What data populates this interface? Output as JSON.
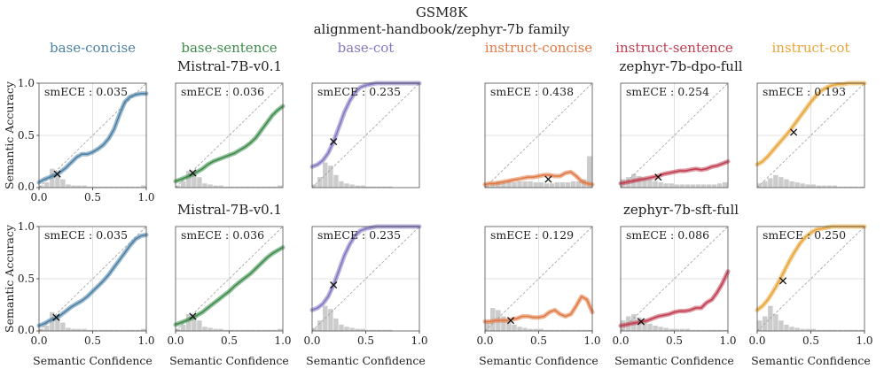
{
  "figure": {
    "title": "GSM8K",
    "subtitle": "alignment-handbook/zephyr-7b family",
    "column_titles": [
      {
        "label": "base-concise",
        "color": "#4c81a6"
      },
      {
        "label": "base-sentence",
        "color": "#3d8c4c"
      },
      {
        "label": "base-cot",
        "color": "#8477c0"
      },
      {
        "label": "instruct-concise",
        "color": "#e07a45"
      },
      {
        "label": "instruct-sentence",
        "color": "#c13e51"
      },
      {
        "label": "instruct-cot",
        "color": "#e8a53a"
      }
    ],
    "row_labels": [
      {
        "left": "Mistral-7B-v0.1",
        "right": "zephyr-7b-dpo-full"
      },
      {
        "left": "Mistral-7B-v0.1",
        "right": "zephyr-7b-sft-full"
      }
    ],
    "xlabel": "Semantic Confidence",
    "ylabel": "Semantic Accuracy"
  },
  "chart_data": [
    {
      "type": "line",
      "row": 0,
      "col": 0,
      "label": "base-concise",
      "annotation": "smECE : 0.035",
      "xlim": [
        0,
        1
      ],
      "ylim": [
        0,
        1
      ],
      "xticks": [
        "0.0",
        "0.5",
        "1.0"
      ],
      "yticks": [
        "0.0",
        "0.5",
        "1.0"
      ],
      "color": "#4c81a6",
      "curve_x": [
        0,
        0.05,
        0.1,
        0.15,
        0.2,
        0.25,
        0.3,
        0.35,
        0.4,
        0.45,
        0.5,
        0.55,
        0.6,
        0.65,
        0.7,
        0.75,
        0.8,
        0.85,
        0.9,
        0.95,
        1.0
      ],
      "curve_y": [
        0.05,
        0.08,
        0.1,
        0.12,
        0.15,
        0.19,
        0.24,
        0.29,
        0.32,
        0.32,
        0.34,
        0.37,
        0.41,
        0.47,
        0.56,
        0.7,
        0.82,
        0.87,
        0.89,
        0.9,
        0.9
      ],
      "marker": [
        0.17,
        0.13
      ],
      "hist": [
        0.02,
        0.05,
        0.18,
        0.14,
        0.08,
        0.03,
        0.02,
        0.02,
        0.02,
        0.01,
        0.01,
        0.01,
        0.01,
        0.01,
        0.01,
        0.01,
        0.01,
        0.01,
        0.01,
        0.02
      ]
    },
    {
      "type": "line",
      "row": 0,
      "col": 1,
      "label": "base-sentence",
      "annotation": "smECE : 0.036",
      "xlim": [
        0,
        1
      ],
      "ylim": [
        0,
        1
      ],
      "xticks": [],
      "yticks": [],
      "color": "#3d8c4c",
      "curve_x": [
        0,
        0.05,
        0.1,
        0.15,
        0.2,
        0.25,
        0.3,
        0.35,
        0.4,
        0.45,
        0.5,
        0.55,
        0.6,
        0.65,
        0.7,
        0.75,
        0.8,
        0.85,
        0.9,
        0.95,
        1.0
      ],
      "curve_y": [
        0.06,
        0.08,
        0.1,
        0.12,
        0.15,
        0.18,
        0.22,
        0.25,
        0.27,
        0.29,
        0.31,
        0.33,
        0.36,
        0.39,
        0.43,
        0.48,
        0.55,
        0.62,
        0.69,
        0.74,
        0.78
      ],
      "marker": [
        0.16,
        0.14
      ],
      "hist": [
        0.02,
        0.06,
        0.16,
        0.13,
        0.1,
        0.04,
        0.03,
        0.02,
        0.02,
        0.01,
        0.01,
        0.01,
        0.01,
        0.01,
        0.01,
        0.01,
        0.01,
        0.01,
        0.01,
        0.02
      ]
    },
    {
      "type": "line",
      "row": 0,
      "col": 2,
      "label": "base-cot",
      "annotation": "smECE : 0.235",
      "xlim": [
        0,
        1
      ],
      "ylim": [
        0,
        1
      ],
      "xticks": [],
      "yticks": [],
      "color": "#8477c0",
      "curve_x": [
        0,
        0.05,
        0.1,
        0.15,
        0.2,
        0.25,
        0.3,
        0.35,
        0.4,
        0.45,
        0.5,
        0.55,
        0.6,
        0.65,
        0.7,
        0.75,
        0.8,
        0.85,
        0.9,
        0.95,
        1.0
      ],
      "curve_y": [
        0.2,
        0.22,
        0.26,
        0.33,
        0.44,
        0.58,
        0.72,
        0.83,
        0.91,
        0.96,
        0.98,
        0.99,
        1.0,
        1.0,
        1.0,
        1.0,
        1.0,
        1.0,
        1.0,
        1.0,
        1.0
      ],
      "marker": [
        0.2,
        0.44
      ],
      "hist": [
        0.03,
        0.1,
        0.24,
        0.21,
        0.12,
        0.06,
        0.04,
        0.03,
        0.02,
        0.02,
        0.01,
        0.01,
        0.01,
        0.01,
        0.01,
        0.0,
        0.0,
        0.0,
        0.0,
        0.0
      ]
    },
    {
      "type": "line",
      "row": 0,
      "col": 3,
      "label": "instruct-concise",
      "annotation": "smECE : 0.438",
      "xlim": [
        0,
        1
      ],
      "ylim": [
        0,
        1
      ],
      "xticks": [],
      "yticks": [],
      "color": "#e07a45",
      "curve_x": [
        0,
        0.05,
        0.1,
        0.15,
        0.2,
        0.25,
        0.3,
        0.35,
        0.4,
        0.45,
        0.5,
        0.55,
        0.6,
        0.65,
        0.7,
        0.75,
        0.8,
        0.85,
        0.9,
        0.95,
        1.0
      ],
      "curve_y": [
        0.03,
        0.04,
        0.04,
        0.05,
        0.06,
        0.07,
        0.08,
        0.09,
        0.1,
        0.1,
        0.11,
        0.12,
        0.12,
        0.11,
        0.11,
        0.14,
        0.15,
        0.11,
        0.06,
        0.04,
        0.03
      ],
      "marker": [
        0.59,
        0.08
      ],
      "hist": [
        0.02,
        0.04,
        0.06,
        0.05,
        0.06,
        0.05,
        0.06,
        0.06,
        0.06,
        0.05,
        0.05,
        0.04,
        0.04,
        0.05,
        0.05,
        0.05,
        0.06,
        0.06,
        0.08,
        0.3
      ]
    },
    {
      "type": "line",
      "row": 0,
      "col": 4,
      "label": "instruct-sentence",
      "annotation": "smECE : 0.254",
      "xlim": [
        0,
        1
      ],
      "ylim": [
        0,
        1
      ],
      "xticks": [],
      "yticks": [],
      "color": "#c13e51",
      "curve_x": [
        0,
        0.05,
        0.1,
        0.15,
        0.2,
        0.25,
        0.3,
        0.35,
        0.4,
        0.45,
        0.5,
        0.55,
        0.6,
        0.65,
        0.7,
        0.75,
        0.8,
        0.85,
        0.9,
        0.95,
        1.0
      ],
      "curve_y": [
        0.04,
        0.05,
        0.06,
        0.07,
        0.08,
        0.09,
        0.1,
        0.11,
        0.13,
        0.14,
        0.15,
        0.16,
        0.16,
        0.17,
        0.18,
        0.17,
        0.18,
        0.2,
        0.21,
        0.23,
        0.25
      ],
      "marker": [
        0.35,
        0.1
      ],
      "hist": [
        0.08,
        0.1,
        0.13,
        0.11,
        0.09,
        0.08,
        0.06,
        0.05,
        0.04,
        0.04,
        0.03,
        0.03,
        0.03,
        0.03,
        0.03,
        0.03,
        0.03,
        0.03,
        0.04,
        0.05
      ]
    },
    {
      "type": "line",
      "row": 0,
      "col": 5,
      "label": "instruct-cot",
      "annotation": "smECE : 0.193",
      "xlim": [
        0,
        1
      ],
      "ylim": [
        0,
        1
      ],
      "xticks": [],
      "yticks": [],
      "color": "#e8a53a",
      "curve_x": [
        0,
        0.05,
        0.1,
        0.15,
        0.2,
        0.25,
        0.3,
        0.35,
        0.4,
        0.45,
        0.5,
        0.55,
        0.6,
        0.65,
        0.7,
        0.75,
        0.8,
        0.85,
        0.9,
        0.95,
        1.0
      ],
      "curve_y": [
        0.22,
        0.25,
        0.3,
        0.36,
        0.42,
        0.48,
        0.54,
        0.61,
        0.68,
        0.75,
        0.82,
        0.88,
        0.93,
        0.96,
        0.98,
        0.99,
        0.99,
        1.0,
        1.0,
        1.0,
        1.0
      ],
      "marker": [
        0.34,
        0.53
      ],
      "hist": [
        0.04,
        0.06,
        0.09,
        0.12,
        0.1,
        0.08,
        0.06,
        0.05,
        0.04,
        0.03,
        0.03,
        0.02,
        0.02,
        0.02,
        0.02,
        0.01,
        0.01,
        0.01,
        0.01,
        0.01
      ]
    },
    {
      "type": "line",
      "row": 1,
      "col": 0,
      "label": "base-concise",
      "annotation": "smECE : 0.035",
      "xlim": [
        0,
        1
      ],
      "ylim": [
        0,
        1
      ],
      "xticks": [
        "0.0",
        "0.5",
        "1.0"
      ],
      "yticks": [
        "0.0",
        "0.5",
        "1.0"
      ],
      "color": "#4c81a6",
      "curve_x": [
        0,
        0.05,
        0.1,
        0.15,
        0.2,
        0.25,
        0.3,
        0.35,
        0.4,
        0.45,
        0.5,
        0.55,
        0.6,
        0.65,
        0.7,
        0.75,
        0.8,
        0.85,
        0.9,
        0.95,
        1.0
      ],
      "curve_y": [
        0.05,
        0.07,
        0.1,
        0.12,
        0.15,
        0.19,
        0.23,
        0.26,
        0.29,
        0.33,
        0.38,
        0.43,
        0.48,
        0.54,
        0.61,
        0.68,
        0.75,
        0.82,
        0.88,
        0.91,
        0.92
      ],
      "marker": [
        0.16,
        0.13
      ],
      "hist": [
        0.02,
        0.05,
        0.18,
        0.14,
        0.08,
        0.03,
        0.02,
        0.02,
        0.02,
        0.01,
        0.01,
        0.01,
        0.01,
        0.01,
        0.01,
        0.01,
        0.01,
        0.01,
        0.01,
        0.02
      ]
    },
    {
      "type": "line",
      "row": 1,
      "col": 1,
      "label": "base-sentence",
      "annotation": "smECE : 0.036",
      "xlim": [
        0,
        1
      ],
      "ylim": [
        0,
        1
      ],
      "xticks": [
        "0.0",
        "0.5",
        "1.0"
      ],
      "yticks": [],
      "color": "#3d8c4c",
      "curve_x": [
        0,
        0.05,
        0.1,
        0.15,
        0.2,
        0.25,
        0.3,
        0.35,
        0.4,
        0.45,
        0.5,
        0.55,
        0.6,
        0.65,
        0.7,
        0.75,
        0.8,
        0.85,
        0.9,
        0.95,
        1.0
      ],
      "curve_y": [
        0.06,
        0.08,
        0.1,
        0.12,
        0.15,
        0.18,
        0.22,
        0.26,
        0.3,
        0.34,
        0.38,
        0.43,
        0.47,
        0.51,
        0.55,
        0.6,
        0.65,
        0.7,
        0.74,
        0.77,
        0.8
      ],
      "marker": [
        0.16,
        0.14
      ],
      "hist": [
        0.02,
        0.06,
        0.16,
        0.13,
        0.1,
        0.04,
        0.03,
        0.02,
        0.02,
        0.01,
        0.01,
        0.01,
        0.01,
        0.01,
        0.01,
        0.01,
        0.01,
        0.01,
        0.01,
        0.02
      ]
    },
    {
      "type": "line",
      "row": 1,
      "col": 2,
      "label": "base-cot",
      "annotation": "smECE : 0.235",
      "xlim": [
        0,
        1
      ],
      "ylim": [
        0,
        1
      ],
      "xticks": [
        "0.0",
        "0.5",
        "1.0"
      ],
      "yticks": [],
      "color": "#8477c0",
      "curve_x": [
        0,
        0.05,
        0.1,
        0.15,
        0.2,
        0.25,
        0.3,
        0.35,
        0.4,
        0.45,
        0.5,
        0.55,
        0.6,
        0.65,
        0.7,
        0.75,
        0.8,
        0.85,
        0.9,
        0.95,
        1.0
      ],
      "curve_y": [
        0.2,
        0.22,
        0.26,
        0.33,
        0.44,
        0.58,
        0.72,
        0.83,
        0.91,
        0.96,
        0.98,
        0.99,
        1.0,
        1.0,
        1.0,
        1.0,
        1.0,
        1.0,
        1.0,
        1.0,
        1.0
      ],
      "marker": [
        0.2,
        0.44
      ],
      "hist": [
        0.03,
        0.1,
        0.24,
        0.21,
        0.12,
        0.06,
        0.04,
        0.03,
        0.02,
        0.02,
        0.01,
        0.01,
        0.01,
        0.01,
        0.01,
        0.0,
        0.0,
        0.0,
        0.0,
        0.0
      ]
    },
    {
      "type": "line",
      "row": 1,
      "col": 3,
      "label": "instruct-concise",
      "annotation": "smECE : 0.129",
      "xlim": [
        0,
        1
      ],
      "ylim": [
        0,
        1
      ],
      "xticks": [
        "0.0",
        "0.5",
        "1.0"
      ],
      "yticks": [],
      "color": "#e07a45",
      "curve_x": [
        0,
        0.05,
        0.1,
        0.15,
        0.2,
        0.25,
        0.3,
        0.35,
        0.4,
        0.45,
        0.5,
        0.55,
        0.6,
        0.65,
        0.7,
        0.75,
        0.8,
        0.85,
        0.9,
        0.95,
        1.0
      ],
      "curve_y": [
        0.09,
        0.09,
        0.1,
        0.1,
        0.1,
        0.11,
        0.12,
        0.14,
        0.14,
        0.13,
        0.13,
        0.14,
        0.18,
        0.2,
        0.16,
        0.14,
        0.16,
        0.24,
        0.33,
        0.3,
        0.18
      ],
      "marker": [
        0.24,
        0.1
      ],
      "hist": [
        0.08,
        0.22,
        0.2,
        0.14,
        0.1,
        0.06,
        0.04,
        0.03,
        0.02,
        0.02,
        0.02,
        0.01,
        0.01,
        0.01,
        0.01,
        0.01,
        0.01,
        0.01,
        0.01,
        0.01
      ]
    },
    {
      "type": "line",
      "row": 1,
      "col": 4,
      "label": "instruct-sentence",
      "annotation": "smECE : 0.086",
      "xlim": [
        0,
        1
      ],
      "ylim": [
        0,
        1
      ],
      "xticks": [
        "0.0",
        "0.5",
        "1.0"
      ],
      "yticks": [],
      "color": "#c13e51",
      "curve_x": [
        0,
        0.05,
        0.1,
        0.15,
        0.2,
        0.25,
        0.3,
        0.35,
        0.4,
        0.45,
        0.5,
        0.55,
        0.6,
        0.65,
        0.7,
        0.75,
        0.8,
        0.85,
        0.9,
        0.95,
        1.0
      ],
      "curve_y": [
        0.05,
        0.06,
        0.07,
        0.08,
        0.09,
        0.1,
        0.12,
        0.14,
        0.15,
        0.16,
        0.18,
        0.19,
        0.19,
        0.2,
        0.22,
        0.22,
        0.27,
        0.3,
        0.37,
        0.46,
        0.57
      ],
      "marker": [
        0.19,
        0.09
      ],
      "hist": [
        0.1,
        0.14,
        0.16,
        0.13,
        0.1,
        0.07,
        0.05,
        0.04,
        0.03,
        0.02,
        0.02,
        0.02,
        0.02,
        0.01,
        0.01,
        0.01,
        0.01,
        0.01,
        0.01,
        0.01
      ]
    },
    {
      "type": "line",
      "row": 1,
      "col": 5,
      "label": "instruct-cot",
      "annotation": "smECE : 0.250",
      "xlim": [
        0,
        1
      ],
      "ylim": [
        0,
        1
      ],
      "xticks": [
        "0.0",
        "0.5",
        "1.0"
      ],
      "yticks": [],
      "color": "#e8a53a",
      "curve_x": [
        0,
        0.05,
        0.1,
        0.15,
        0.2,
        0.25,
        0.3,
        0.35,
        0.4,
        0.45,
        0.5,
        0.55,
        0.6,
        0.65,
        0.7,
        0.75,
        0.8,
        0.85,
        0.9,
        0.95,
        1.0
      ],
      "curve_y": [
        0.2,
        0.24,
        0.3,
        0.38,
        0.47,
        0.57,
        0.67,
        0.76,
        0.84,
        0.9,
        0.94,
        0.97,
        0.98,
        0.99,
        1.0,
        1.0,
        1.0,
        1.0,
        1.0,
        1.0,
        1.0
      ],
      "marker": [
        0.24,
        0.48
      ],
      "hist": [
        0.1,
        0.14,
        0.24,
        0.16,
        0.1,
        0.06,
        0.04,
        0.03,
        0.02,
        0.02,
        0.02,
        0.01,
        0.01,
        0.01,
        0.01,
        0.01,
        0.01,
        0.01,
        0.01,
        0.01
      ]
    }
  ]
}
